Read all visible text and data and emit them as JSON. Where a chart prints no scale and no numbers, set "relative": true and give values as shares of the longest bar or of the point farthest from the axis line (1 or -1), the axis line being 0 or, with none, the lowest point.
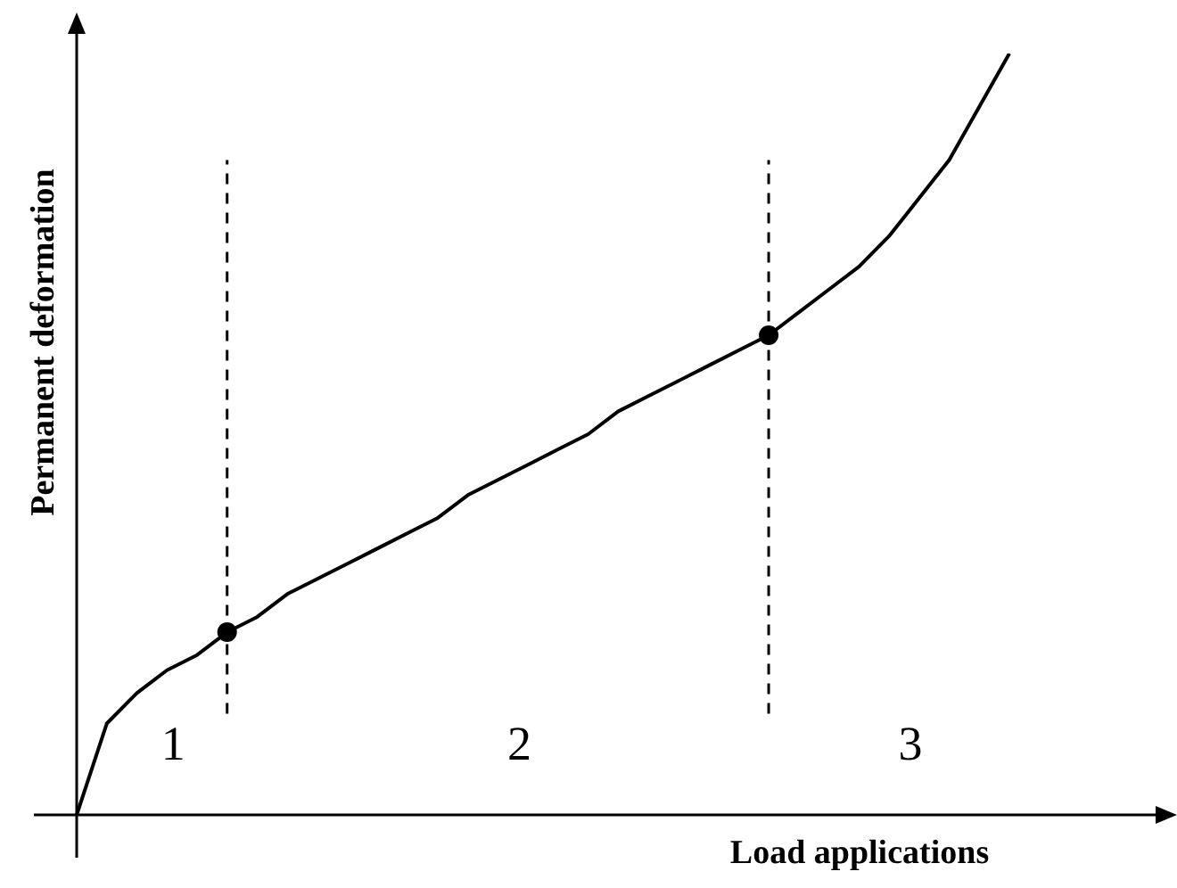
{
  "chart_data": {
    "type": "line",
    "relative": true,
    "xlabel": "Load applications",
    "ylabel": "Permanent deformation",
    "categories": [
      null,
      null,
      null,
      null,
      null,
      null,
      null,
      null,
      null,
      null,
      null,
      null,
      null,
      null,
      null,
      null,
      null,
      null,
      null,
      null,
      null,
      null,
      null,
      null,
      null,
      null,
      null,
      null,
      null,
      null,
      null,
      null
    ],
    "series": [
      {
        "color": "#000000",
        "values": [
          0,
          0.12,
          0.16,
          0.19,
          0.21,
          0.24,
          0.26,
          0.29,
          0.31,
          0.33,
          0.35,
          0.37,
          0.39,
          0.42,
          0.44,
          0.46,
          0.48,
          0.5,
          0.53,
          0.55,
          0.57,
          0.59,
          0.61,
          0.63,
          0.66,
          0.69,
          0.72,
          0.76,
          0.81,
          0.86,
          0.93,
          1
        ]
      }
    ],
    "annotations": [
      "1",
      "2",
      "3"
    ]
  }
}
